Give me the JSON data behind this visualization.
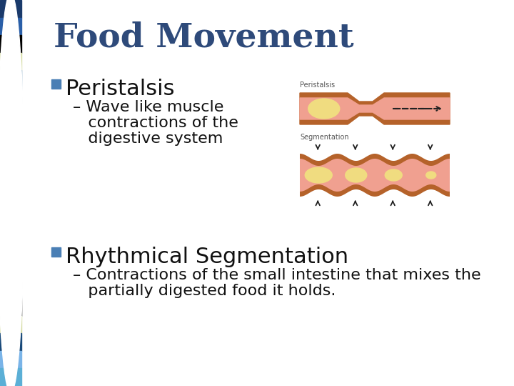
{
  "title": "Food Movement",
  "title_color": "#2E4A7A",
  "title_fontsize": 34,
  "bg_color": "#FFFFFF",
  "bullet_color": "#4A7FB5",
  "sidebar_colors": [
    "#1a3a6b",
    "#2a5fa8",
    "#000000",
    "#d4dba0",
    "#5a8ab0",
    "#1a4a7a",
    "#5bafd6",
    "#d4dba0",
    "#000000",
    "#6a8a9a",
    "#1a4a8a",
    "#7ab4e8",
    "#d4dba0",
    "#00b0c0",
    "#2a5fa8",
    "#1a3a6b",
    "#5a8ab0",
    "#000000",
    "#d4dba0",
    "#1a4a7a",
    "#7ab4e8",
    "#5bafd6"
  ],
  "main_bullet1": "Peristalsis",
  "main_bullet1_fontsize": 22,
  "sub_bullet1_lines": [
    "– Wave like muscle",
    "   contractions of the",
    "   digestive system"
  ],
  "sub_bullet1_fontsize": 16,
  "main_bullet2": "Rhythmical Segmentation",
  "main_bullet2_fontsize": 22,
  "sub_bullet2_lines": [
    "– Contractions of the small intestine that mixes the",
    "   partially digested food it holds."
  ],
  "sub_bullet2_fontsize": 16,
  "peristalsis_label": "Peristalsis",
  "segmentation_label": "Segmentation",
  "text_color": "#111111",
  "tube_outer_color": "#B5622A",
  "tube_inner_color": "#F0A090",
  "food_color": "#F0DC80",
  "arrow_color": "#222222",
  "label_color": "#555555",
  "label_fontsize": 7
}
